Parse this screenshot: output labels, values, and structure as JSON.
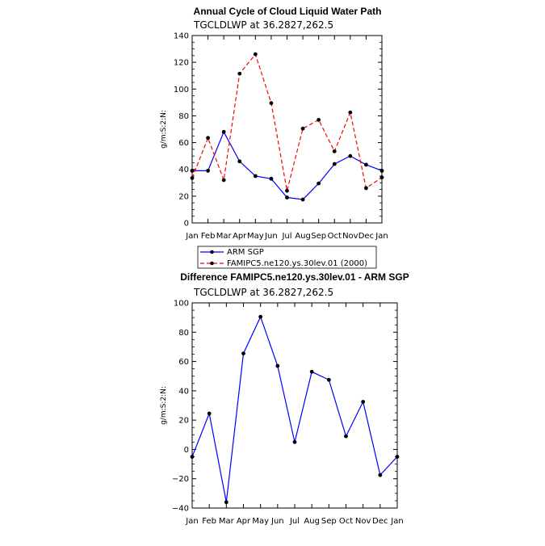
{
  "chart_data": [
    {
      "type": "line",
      "title": "Annual Cycle of Cloud Liquid Water Path",
      "subtitle": "TGCLDLWP  at  36.2827,262.5",
      "ylabel": "g/m:S:2:N:",
      "xlabel": "",
      "ylim": [
        0,
        140
      ],
      "yticks": [
        0,
        20,
        40,
        60,
        80,
        100,
        120,
        140
      ],
      "categories": [
        "Jan",
        "Feb",
        "Mar",
        "Apr",
        "May",
        "Jun",
        "Jul",
        "Aug",
        "Sep",
        "Oct",
        "Nov",
        "Dec",
        "Jan"
      ],
      "legend_position": "bottom",
      "series": [
        {
          "name": "ARM SGP",
          "color": "#0000ff",
          "dash": "solid",
          "values": [
            39,
            39,
            68,
            46,
            35,
            33,
            19,
            17.5,
            29.5,
            44,
            50,
            43.5,
            39
          ]
        },
        {
          "name": "FAMIPC5.ne120.ys.30lev.01 (2000)",
          "color": "#ff0000",
          "dash": "dashed",
          "values": [
            33.5,
            63.5,
            32,
            111.5,
            126,
            89.5,
            24,
            70.5,
            77,
            53.5,
            82.5,
            26,
            34
          ]
        }
      ]
    },
    {
      "type": "line",
      "title": "Difference FAMIPC5.ne120.ys.30lev.01 - ARM SGP",
      "subtitle": "TGCLDLWP  at  36.2827,262.5",
      "ylabel": "g/m:S:2:N:",
      "xlabel": "",
      "ylim": [
        -40,
        100
      ],
      "yticks": [
        -40,
        -20,
        0,
        20,
        40,
        60,
        80,
        100
      ],
      "categories": [
        "Jan",
        "Feb",
        "Mar",
        "Apr",
        "May",
        "Jun",
        "Jul",
        "Aug",
        "Sep",
        "Oct",
        "Nov",
        "Dec",
        "Jan"
      ],
      "series": [
        {
          "name": "Difference",
          "color": "#0000ff",
          "dash": "solid",
          "values": [
            -5,
            24.5,
            -36,
            65.5,
            90.5,
            57,
            5,
            53,
            47.5,
            9,
            32.5,
            -17.5,
            -5
          ]
        }
      ]
    }
  ]
}
